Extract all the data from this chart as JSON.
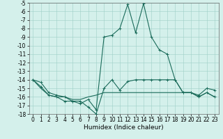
{
  "title": "",
  "xlabel": "Humidex (Indice chaleur)",
  "x": [
    0,
    1,
    2,
    3,
    4,
    5,
    6,
    7,
    8,
    9,
    10,
    11,
    12,
    13,
    14,
    15,
    16,
    17,
    18,
    19,
    20,
    21,
    22,
    23
  ],
  "line1": [
    -14,
    -14.3,
    -15.5,
    -15.8,
    -16,
    -16.5,
    -16.8,
    -16.3,
    -17.5,
    -9.0,
    -8.8,
    -8.0,
    -5.2,
    -8.5,
    -5.1,
    -9.0,
    -10.5,
    -11.0,
    -14.0,
    -15.5,
    -15.5,
    -15.8,
    -15.0,
    -15.2
  ],
  "line2": [
    -14,
    -14.8,
    -15.8,
    -16.0,
    -16.5,
    -16.5,
    -16.5,
    -17.2,
    -18.0,
    -15.0,
    -14.0,
    -15.2,
    -14.2,
    -14.0,
    -14.0,
    -14.0,
    -14.0,
    -14.0,
    -14.0,
    -15.5,
    -15.5,
    -16.0,
    -15.5,
    -16.0
  ],
  "line3": [
    -14,
    -15.0,
    -15.8,
    -16.0,
    -16.0,
    -16.3,
    -16.3,
    -16.0,
    -15.8,
    -15.5,
    -15.5,
    -15.5,
    -15.5,
    -15.5,
    -15.5,
    -15.5,
    -15.5,
    -15.5,
    -15.5,
    -15.5,
    -15.5,
    -16.0,
    -15.5,
    -16.0
  ],
  "ylim_min": -18,
  "ylim_max": -5,
  "xlim_min": -0.5,
  "xlim_max": 23.5,
  "yticks": [
    -18,
    -17,
    -16,
    -15,
    -14,
    -13,
    -12,
    -11,
    -10,
    -9,
    -8,
    -7,
    -6,
    -5
  ],
  "xticks": [
    0,
    1,
    2,
    3,
    4,
    5,
    6,
    7,
    8,
    9,
    10,
    11,
    12,
    13,
    14,
    15,
    16,
    17,
    18,
    19,
    20,
    21,
    22,
    23
  ],
  "bg_color": "#d4f0eb",
  "grid_color": "#9ecfc7",
  "line_color": "#1a6b5a",
  "tick_fontsize": 5.5,
  "xlabel_fontsize": 6.5,
  "linewidth": 0.8,
  "marker": "+",
  "markersize": 3.5
}
